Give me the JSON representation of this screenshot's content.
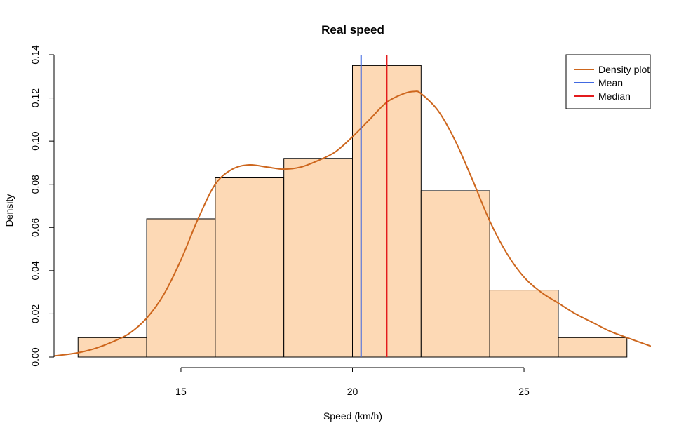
{
  "chart_data": {
    "type": "bar",
    "title": "Real speed",
    "xlabel": "Speed (km/h)",
    "ylabel": "Density",
    "xlim": [
      11.3,
      28.7
    ],
    "ylim": [
      0,
      0.14
    ],
    "x_ticks": [
      15,
      20,
      25
    ],
    "y_ticks": [
      0.0,
      0.02,
      0.04,
      0.06,
      0.08,
      0.1,
      0.12,
      0.14
    ],
    "y_tick_labels": [
      "0.00",
      "0.02",
      "0.04",
      "0.06",
      "0.08",
      "0.10",
      "0.12",
      "0.14"
    ],
    "bins": [
      {
        "from": 12,
        "to": 14,
        "density": 0.009
      },
      {
        "from": 14,
        "to": 16,
        "density": 0.064
      },
      {
        "from": 16,
        "to": 18,
        "density": 0.083
      },
      {
        "from": 18,
        "to": 20,
        "density": 0.092
      },
      {
        "from": 20,
        "to": 22,
        "density": 0.135
      },
      {
        "from": 22,
        "to": 24,
        "density": 0.077
      },
      {
        "from": 24,
        "to": 26,
        "density": 0.031
      },
      {
        "from": 26,
        "to": 28,
        "density": 0.009
      }
    ],
    "density_curve": {
      "x": [
        11.3,
        12.0,
        12.5,
        13.0,
        13.5,
        14.0,
        14.5,
        15.0,
        15.5,
        16.0,
        16.5,
        17.0,
        17.5,
        18.0,
        18.5,
        19.0,
        19.5,
        20.0,
        20.5,
        21.0,
        21.5,
        21.8,
        22.0,
        22.5,
        23.0,
        23.5,
        24.0,
        24.5,
        25.0,
        25.5,
        26.0,
        26.5,
        27.0,
        27.5,
        28.0,
        28.7
      ],
      "y": [
        0.0005,
        0.002,
        0.004,
        0.007,
        0.011,
        0.018,
        0.029,
        0.045,
        0.064,
        0.08,
        0.087,
        0.089,
        0.088,
        0.087,
        0.088,
        0.091,
        0.095,
        0.102,
        0.11,
        0.118,
        0.122,
        0.123,
        0.122,
        0.114,
        0.1,
        0.082,
        0.063,
        0.048,
        0.037,
        0.03,
        0.025,
        0.02,
        0.016,
        0.012,
        0.009,
        0.005
      ]
    },
    "mean": 20.25,
    "median": 21.0,
    "legend": {
      "position": "top-right",
      "entries": [
        {
          "label": "Density plot",
          "color": "#cd661d"
        },
        {
          "label": "Mean",
          "color": "#4169e1"
        },
        {
          "label": "Median",
          "color": "#e31a1c"
        }
      ]
    },
    "colors": {
      "bar_fill": "#fdd9b5",
      "bar_stroke": "#000000",
      "density": "#cd661d",
      "mean": "#4169e1",
      "median": "#e31a1c"
    },
    "grid": false
  }
}
